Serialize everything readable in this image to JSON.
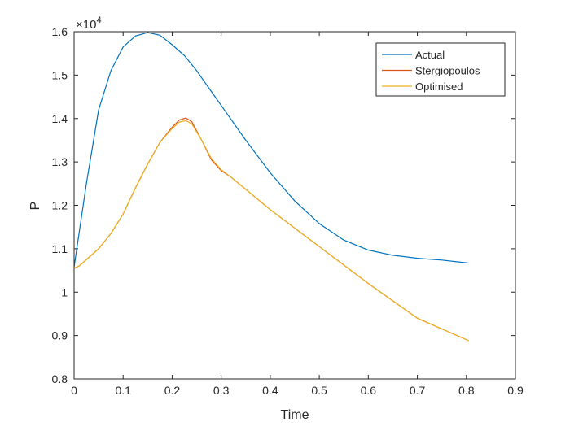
{
  "chart_data": {
    "type": "line",
    "title": "",
    "xlabel": "Time",
    "ylabel": "P",
    "y_exponent_label": "×10",
    "y_exponent": "4",
    "xlim": [
      0,
      0.9
    ],
    "ylim": [
      0.8,
      1.6
    ],
    "y_multiplier": 10000,
    "xticks": [
      "0",
      "0.1",
      "0.2",
      "0.3",
      "0.4",
      "0.5",
      "0.6",
      "0.7",
      "0.8",
      "0.9"
    ],
    "yticks": [
      "0.8",
      "0.9",
      "1",
      "1.1",
      "1.2",
      "1.3",
      "1.4",
      "1.5",
      "1.6"
    ],
    "grid": false,
    "legend_position": "top-right",
    "series": [
      {
        "name": "Actual",
        "color": "#0072BD",
        "x": [
          0,
          0.025,
          0.05,
          0.075,
          0.1,
          0.125,
          0.15,
          0.175,
          0.2,
          0.225,
          0.25,
          0.275,
          0.3,
          0.35,
          0.4,
          0.45,
          0.5,
          0.55,
          0.6,
          0.65,
          0.7,
          0.75,
          0.805
        ],
        "y": [
          1.058,
          1.25,
          1.42,
          1.51,
          1.565,
          1.59,
          1.598,
          1.592,
          1.57,
          1.545,
          1.51,
          1.47,
          1.43,
          1.35,
          1.275,
          1.21,
          1.158,
          1.12,
          1.097,
          1.085,
          1.078,
          1.074,
          1.067
        ]
      },
      {
        "name": "Stergiopoulos",
        "color": "#D95319",
        "x": [
          0,
          0.01,
          0.05,
          0.075,
          0.1,
          0.125,
          0.15,
          0.175,
          0.2,
          0.215,
          0.228,
          0.24,
          0.26,
          0.28,
          0.3,
          0.32,
          0.4,
          0.5,
          0.6,
          0.7,
          0.805
        ],
        "y": [
          1.055,
          1.06,
          1.1,
          1.135,
          1.18,
          1.24,
          1.295,
          1.345,
          1.38,
          1.397,
          1.401,
          1.393,
          1.35,
          1.305,
          1.28,
          1.265,
          1.19,
          1.105,
          1.02,
          0.94,
          0.888
        ]
      },
      {
        "name": "Optimised",
        "color": "#EDB120",
        "x": [
          0,
          0.01,
          0.05,
          0.075,
          0.1,
          0.125,
          0.15,
          0.175,
          0.2,
          0.215,
          0.228,
          0.24,
          0.26,
          0.28,
          0.3,
          0.32,
          0.4,
          0.5,
          0.6,
          0.7,
          0.805
        ],
        "y": [
          1.055,
          1.06,
          1.1,
          1.135,
          1.18,
          1.24,
          1.295,
          1.345,
          1.377,
          1.392,
          1.395,
          1.388,
          1.35,
          1.308,
          1.282,
          1.265,
          1.19,
          1.105,
          1.02,
          0.94,
          0.888
        ]
      }
    ]
  }
}
